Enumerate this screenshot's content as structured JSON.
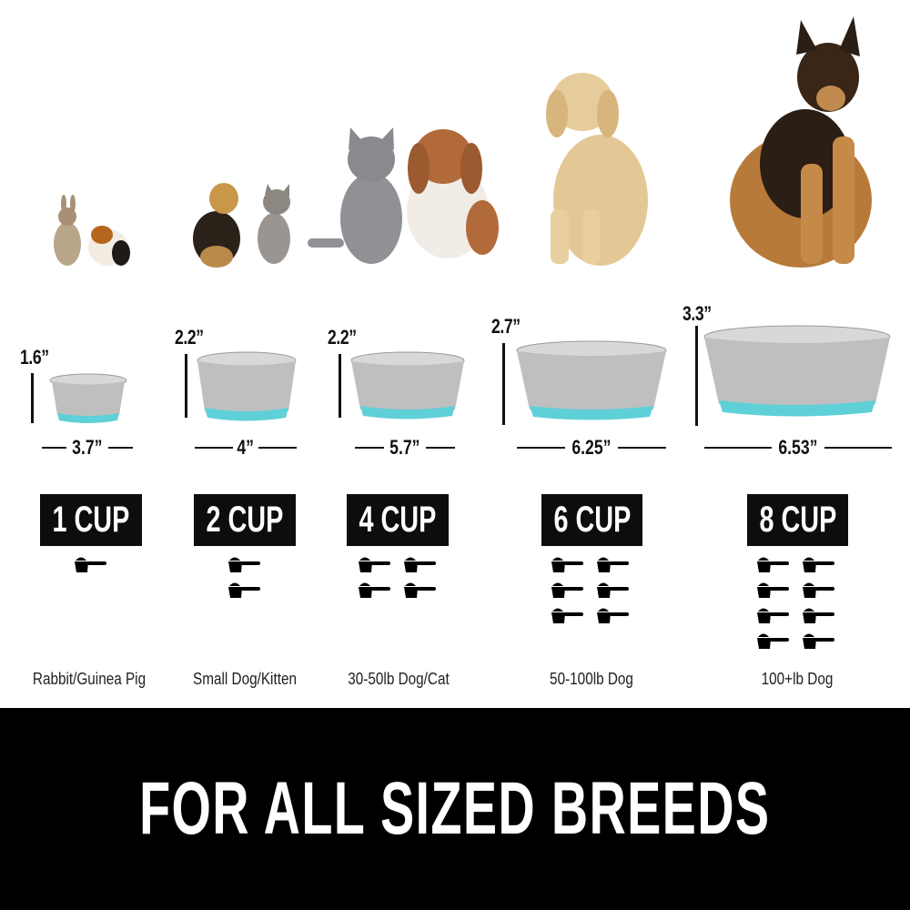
{
  "colors": {
    "accent": "#5fd0d8",
    "band": "#000000",
    "badge": "#0d0d0d"
  },
  "columns": [
    {
      "height": "1.6”",
      "width": "3.7”",
      "capacity": "1 CUP",
      "scoops": 1,
      "label": "Rabbit/Guinea Pig",
      "animals": [
        "rabbit",
        "guinea-pig"
      ]
    },
    {
      "height": "2.2”",
      "width": "4”",
      "capacity": "2 CUP",
      "scoops": 2,
      "label": "Small Dog/Kitten",
      "animals": [
        "yorkie",
        "kitten"
      ]
    },
    {
      "height": "2.2”",
      "width": "5.7”",
      "capacity": "4 CUP",
      "scoops": 4,
      "label": "30-50lb Dog/Cat",
      "animals": [
        "gray-cat",
        "havanese-dog"
      ]
    },
    {
      "height": "2.7”",
      "width": "6.25”",
      "capacity": "6 CUP",
      "scoops": 6,
      "label": "50-100lb Dog",
      "animals": [
        "golden-retriever"
      ]
    },
    {
      "height": "3.3”",
      "width": "6.53”",
      "capacity": "8 CUP",
      "scoops": 8,
      "label": "100+lb Dog",
      "animals": [
        "german-shepherd"
      ]
    }
  ],
  "banner": "FOR ALL SIZED BREEDS"
}
